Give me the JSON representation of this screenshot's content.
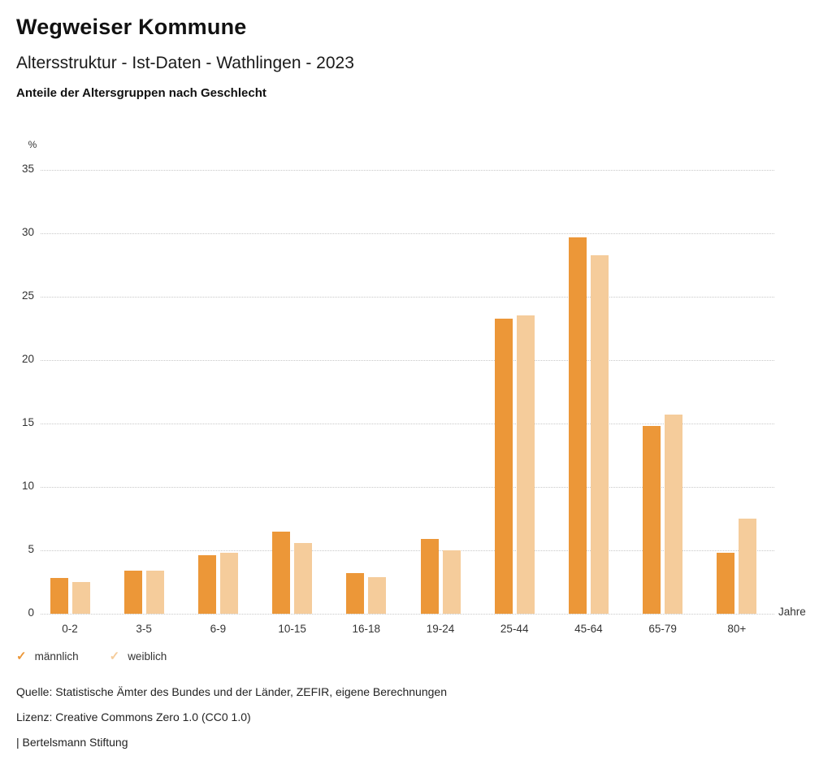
{
  "header": {
    "title": "Wegweiser Kommune",
    "subtitle": "Altersstruktur - Ist-Daten - Wathlingen - 2023",
    "description": "Anteile der Altersgruppen nach Geschlecht"
  },
  "chart_data": {
    "type": "bar",
    "title": "Anteile der Altersgruppen nach Geschlecht",
    "categories": [
      "0-2",
      "3-5",
      "6-9",
      "10-15",
      "16-18",
      "19-24",
      "25-44",
      "45-64",
      "65-79",
      "80+"
    ],
    "series": [
      {
        "name": "männlich",
        "color": "#EC9738",
        "values": [
          2.8,
          3.4,
          4.6,
          6.5,
          3.2,
          5.9,
          23.3,
          29.7,
          14.8,
          4.8
        ]
      },
      {
        "name": "weiblich",
        "color": "#F5CC9B",
        "values": [
          2.5,
          3.4,
          4.8,
          5.6,
          2.9,
          5.0,
          23.5,
          28.3,
          15.7,
          7.5
        ]
      }
    ],
    "ylabel": "%",
    "xlabel": "Jahre",
    "yticks": [
      0,
      5,
      10,
      15,
      20,
      25,
      30,
      35
    ],
    "ylim": [
      0,
      35
    ],
    "grid": "horizontal-dotted",
    "legend_position": "bottom-left"
  },
  "legend": {
    "items": [
      {
        "label": "männlich",
        "color": "#EC9738",
        "icon": "check-icon"
      },
      {
        "label": "weiblich",
        "color": "#F5CC9B",
        "icon": "check-icon"
      }
    ]
  },
  "footer": {
    "source": "Quelle: Statistische Ämter des Bundes und der Länder, ZEFIR, eigene Berechnungen",
    "license": "Lizenz: Creative Commons Zero 1.0 (CC0 1.0)",
    "attribution": "| Bertelsmann Stiftung"
  }
}
